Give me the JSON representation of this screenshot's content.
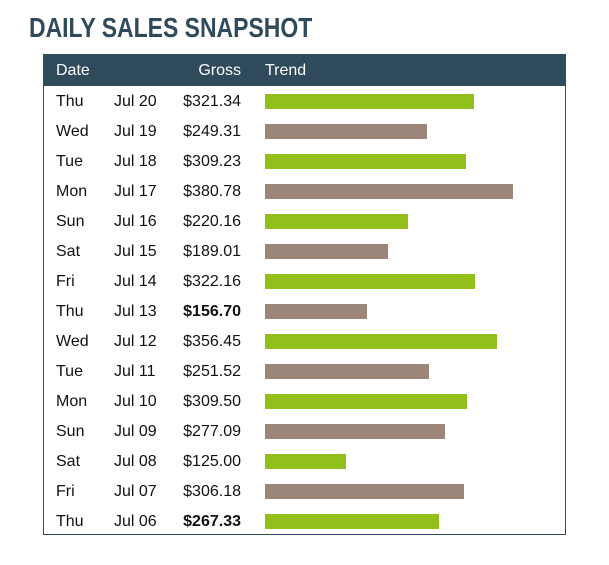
{
  "title": "DAILY SALES SNAPSHOT",
  "header": {
    "date": "Date",
    "gross": "Gross",
    "trend": "Trend"
  },
  "colors": {
    "green": "#93bf1a",
    "brown": "#9c8579",
    "header_bg": "#2e4a5b"
  },
  "chart_data": {
    "type": "bar",
    "title": "DAILY SALES SNAPSHOT",
    "orientation": "horizontal",
    "value_scale": [
      0,
      430
    ],
    "rows": [
      {
        "day": "Thu",
        "date": "Jul 20",
        "gross": "$321.34",
        "value": 321.34,
        "color": "green",
        "bold": false
      },
      {
        "day": "Wed",
        "date": "Jul 19",
        "gross": "$249.31",
        "value": 249.31,
        "color": "brown",
        "bold": false
      },
      {
        "day": "Tue",
        "date": "Jul 18",
        "gross": "$309.23",
        "value": 309.23,
        "color": "green",
        "bold": false
      },
      {
        "day": "Mon",
        "date": "Jul 17",
        "gross": "$380.78",
        "value": 380.78,
        "color": "brown",
        "bold": false
      },
      {
        "day": "Sun",
        "date": "Jul 16",
        "gross": "$220.16",
        "value": 220.16,
        "color": "green",
        "bold": false
      },
      {
        "day": "Sat",
        "date": "Jul 15",
        "gross": "$189.01",
        "value": 189.01,
        "color": "brown",
        "bold": false
      },
      {
        "day": "Fri",
        "date": "Jul 14",
        "gross": "$322.16",
        "value": 322.16,
        "color": "green",
        "bold": false
      },
      {
        "day": "Thu",
        "date": "Jul 13",
        "gross": "$156.70",
        "value": 156.7,
        "color": "brown",
        "bold": true
      },
      {
        "day": "Wed",
        "date": "Jul 12",
        "gross": "$356.45",
        "value": 356.45,
        "color": "green",
        "bold": false
      },
      {
        "day": "Tue",
        "date": "Jul 11",
        "gross": "$251.52",
        "value": 251.52,
        "color": "brown",
        "bold": false
      },
      {
        "day": "Mon",
        "date": "Jul 10",
        "gross": "$309.50",
        "value": 309.5,
        "color": "green",
        "bold": false
      },
      {
        "day": "Sun",
        "date": "Jul 09",
        "gross": "$277.09",
        "value": 277.09,
        "color": "brown",
        "bold": false
      },
      {
        "day": "Sat",
        "date": "Jul 08",
        "gross": "$125.00",
        "value": 125.0,
        "color": "green",
        "bold": false
      },
      {
        "day": "Fri",
        "date": "Jul 07",
        "gross": "$306.18",
        "value": 306.18,
        "color": "brown",
        "bold": false
      },
      {
        "day": "Thu",
        "date": "Jul 06",
        "gross": "$267.33",
        "value": 267.33,
        "color": "green",
        "bold": true
      }
    ]
  }
}
